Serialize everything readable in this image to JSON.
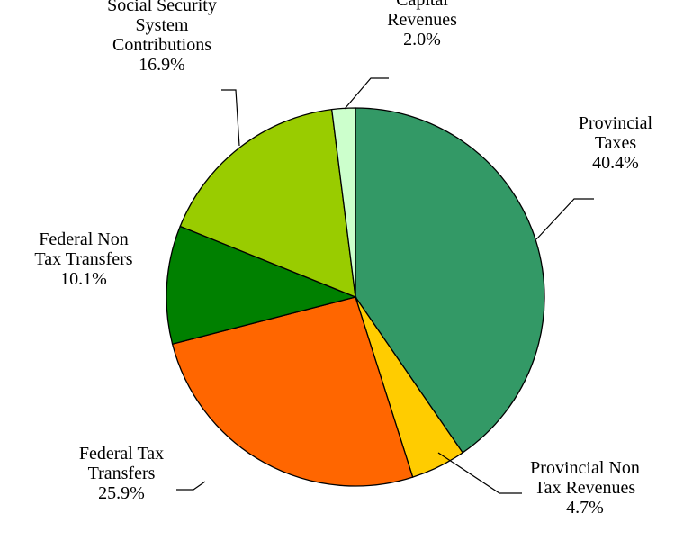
{
  "chart_data": {
    "type": "pie",
    "title": "",
    "slices": [
      {
        "label_lines": [
          "Provincial",
          "Taxes"
        ],
        "value": 40.4,
        "value_label": "40.4%",
        "color": "#339966"
      },
      {
        "label_lines": [
          "Provincial Non",
          "Tax Revenues"
        ],
        "value": 4.7,
        "value_label": "4.7%",
        "color": "#FFCC00"
      },
      {
        "label_lines": [
          "Federal Tax",
          "Transfers"
        ],
        "value": 25.9,
        "value_label": "25.9%",
        "color": "#FF6600"
      },
      {
        "label_lines": [
          "Federal Non",
          "Tax Transfers"
        ],
        "value": 10.1,
        "value_label": "10.1%",
        "color": "#008000"
      },
      {
        "label_lines": [
          "Social Security",
          "System",
          "Contributions"
        ],
        "value": 16.9,
        "value_label": "16.9%",
        "color": "#99CC00"
      },
      {
        "label_lines": [
          "Capital",
          "Revenues"
        ],
        "value": 2.0,
        "value_label": "2.0%",
        "color": "#CCFFCC"
      }
    ],
    "start_angle": "12 o'clock",
    "direction": "clockwise",
    "legend": "none (labels with leader lines)"
  }
}
